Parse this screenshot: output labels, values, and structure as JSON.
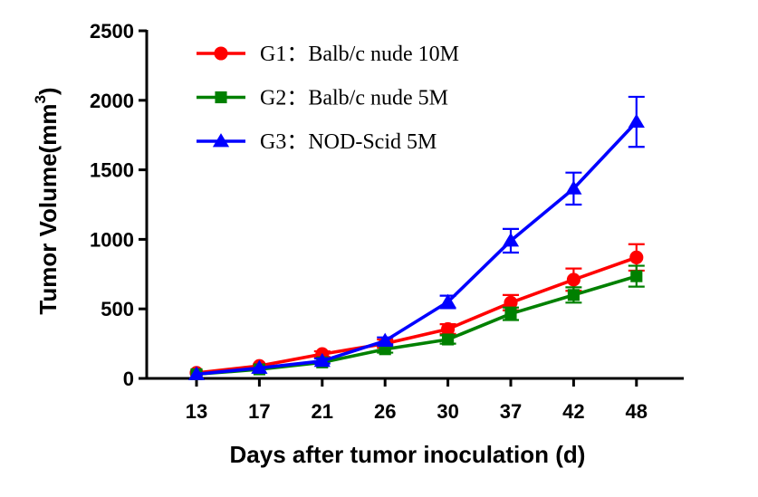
{
  "chart_data": {
    "type": "line",
    "title": "",
    "xlabel": "Days after tumor inoculation  (d)",
    "ylabel_main": "Tumor Volume(mm",
    "ylabel_sup": "3",
    "ylabel_close": ")",
    "categories": [
      "13",
      "17",
      "21",
      "26",
      "30",
      "37",
      "42",
      "48"
    ],
    "ylim": [
      0,
      2500
    ],
    "yticks": [
      0,
      500,
      1000,
      1500,
      2000,
      2500
    ],
    "legend_position": "top-left",
    "series": [
      {
        "name": "G1：Balb/c nude 10M",
        "color": "#ff0000",
        "marker": "circle",
        "values": [
          40,
          90,
          175,
          250,
          355,
          545,
          710,
          870
        ],
        "errors": [
          10,
          15,
          20,
          30,
          35,
          55,
          80,
          95
        ]
      },
      {
        "name": "G2：Balb/c nude 5M",
        "color": "#008000",
        "marker": "square",
        "values": [
          30,
          65,
          115,
          210,
          280,
          465,
          600,
          735
        ],
        "errors": [
          8,
          12,
          15,
          25,
          30,
          45,
          55,
          75
        ]
      },
      {
        "name": "G3：NOD-Scid 5M",
        "color": "#0000ff",
        "marker": "triangle",
        "values": [
          30,
          75,
          125,
          270,
          550,
          990,
          1365,
          1845
        ],
        "errors": [
          8,
          12,
          18,
          25,
          45,
          85,
          115,
          180
        ]
      }
    ]
  }
}
